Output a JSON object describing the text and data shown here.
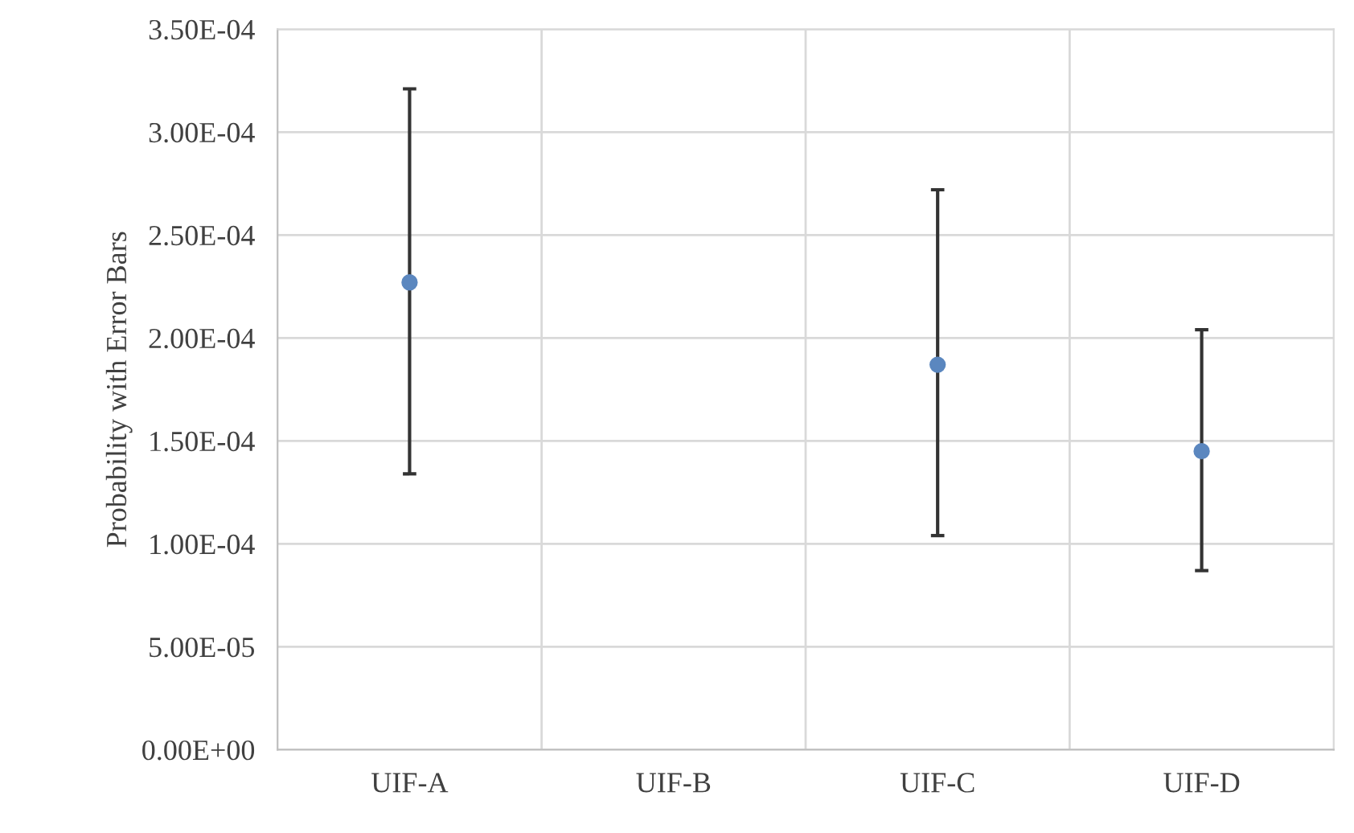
{
  "chart_data": {
    "type": "scatter",
    "ylabel": "Probability with Error Bars",
    "categories": [
      "UIF-A",
      "UIF-B",
      "UIF-C",
      "UIF-D"
    ],
    "series": [
      {
        "color": "#5b87bf",
        "values": [
          0.000227,
          null,
          0.000187,
          0.000145
        ],
        "errors": [
          [
            0.000134,
            0.000321
          ],
          null,
          [
            0.000104,
            0.000272
          ],
          [
            8.7e-05,
            0.000204
          ]
        ]
      }
    ],
    "ylim": [
      0,
      0.00035
    ],
    "yticks": [
      {
        "value": 0,
        "label": "0.00E+00"
      },
      {
        "value": 5e-05,
        "label": "5.00E-05"
      },
      {
        "value": 0.0001,
        "label": "1.00E-04"
      },
      {
        "value": 0.00015,
        "label": "1.50E-04"
      },
      {
        "value": 0.0002,
        "label": "2.00E-04"
      },
      {
        "value": 0.00025,
        "label": "2.50E-04"
      },
      {
        "value": 0.0003,
        "label": "3.00E-04"
      },
      {
        "value": 0.00035,
        "label": "3.50E-04"
      }
    ],
    "grid": true,
    "marker": "circle"
  }
}
